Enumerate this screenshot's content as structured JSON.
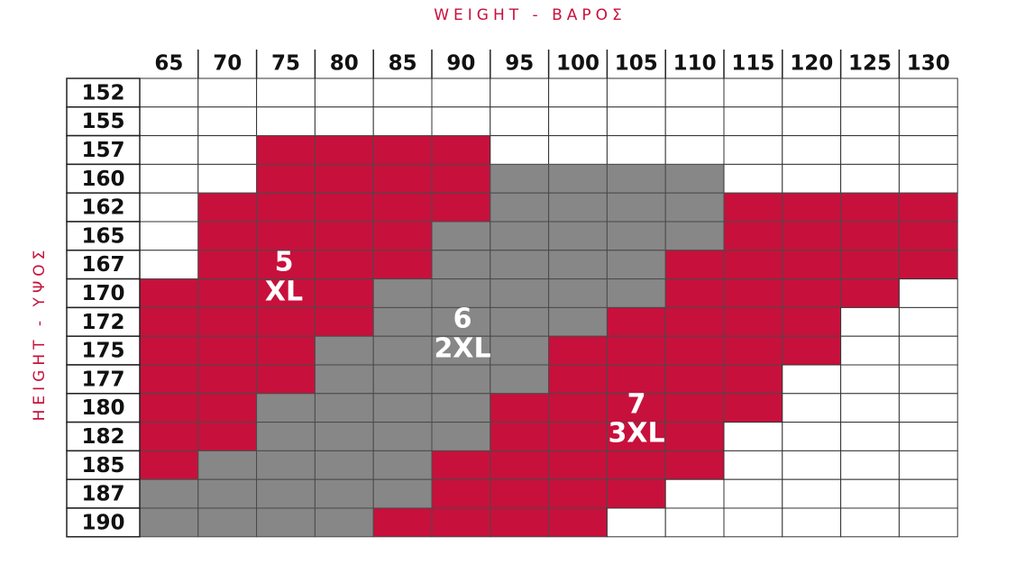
{
  "title_top": "WEIGHT - ΒΑΡΟΣ",
  "title_side": "HEIGHT - ΥΨΟΣ",
  "weights": [
    65,
    70,
    75,
    80,
    85,
    90,
    95,
    100,
    105,
    110,
    115,
    120,
    125,
    130
  ],
  "heights": [
    152,
    155,
    157,
    160,
    162,
    165,
    167,
    170,
    172,
    175,
    177,
    180,
    182,
    185,
    187,
    190
  ],
  "sizes": [
    {
      "number": "5",
      "label": "XL",
      "color": "#c8103c"
    },
    {
      "number": "6",
      "label": "2XL",
      "color": "#878787"
    },
    {
      "number": "7",
      "label": "3XL",
      "color": "#c8103c"
    }
  ],
  "grid": [
    [
      null,
      null,
      null,
      null,
      null,
      null,
      null,
      null,
      null,
      null,
      null,
      null,
      null,
      null
    ],
    [
      null,
      null,
      null,
      null,
      null,
      null,
      null,
      null,
      null,
      null,
      null,
      null,
      null,
      null
    ],
    [
      null,
      null,
      "5",
      "5",
      "5",
      "5",
      null,
      null,
      null,
      null,
      null,
      null,
      null,
      null
    ],
    [
      null,
      null,
      "5",
      "5",
      "5",
      "5",
      "6",
      "6",
      "6",
      "6",
      null,
      null,
      null,
      null
    ],
    [
      null,
      "5",
      "5",
      "5",
      "5",
      "5",
      "6",
      "6",
      "6",
      "6",
      "7",
      "7",
      "7",
      "7"
    ],
    [
      null,
      "5",
      "5",
      "5",
      "5",
      "6",
      "6",
      "6",
      "6",
      "6",
      "7",
      "7",
      "7",
      "7"
    ],
    [
      null,
      "5",
      "5",
      "5",
      "5",
      "6",
      "6",
      "6",
      "6",
      "7",
      "7",
      "7",
      "7",
      "7"
    ],
    [
      "5",
      "5",
      "5",
      "5",
      "6",
      "6",
      "6",
      "6",
      "6",
      "7",
      "7",
      "7",
      "7",
      null
    ],
    [
      "5",
      "5",
      "5",
      "5",
      "6",
      "6",
      "6",
      "6",
      "7",
      "7",
      "7",
      "7",
      null,
      null
    ],
    [
      "5",
      "5",
      "5",
      "6",
      "6",
      "6",
      "6",
      "7",
      "7",
      "7",
      "7",
      "7",
      null,
      null
    ],
    [
      "5",
      "5",
      "5",
      "6",
      "6",
      "6",
      "6",
      "7",
      "7",
      "7",
      "7",
      null,
      null,
      null
    ],
    [
      "5",
      "5",
      "6",
      "6",
      "6",
      "6",
      "7",
      "7",
      "7",
      "7",
      "7",
      null,
      null,
      null
    ],
    [
      "5",
      "5",
      "6",
      "6",
      "6",
      "6",
      "7",
      "7",
      "7",
      "7",
      null,
      null,
      null,
      null
    ],
    [
      "5",
      "6",
      "6",
      "6",
      "6",
      "7",
      "7",
      "7",
      "7",
      "7",
      null,
      null,
      null,
      null
    ],
    [
      "6",
      "6",
      "6",
      "6",
      "6",
      "7",
      "7",
      "7",
      "7",
      null,
      null,
      null,
      null,
      null
    ],
    [
      "6",
      "6",
      "6",
      "6",
      "7",
      "7",
      "7",
      "7",
      null,
      null,
      null,
      null,
      null,
      null
    ]
  ]
}
